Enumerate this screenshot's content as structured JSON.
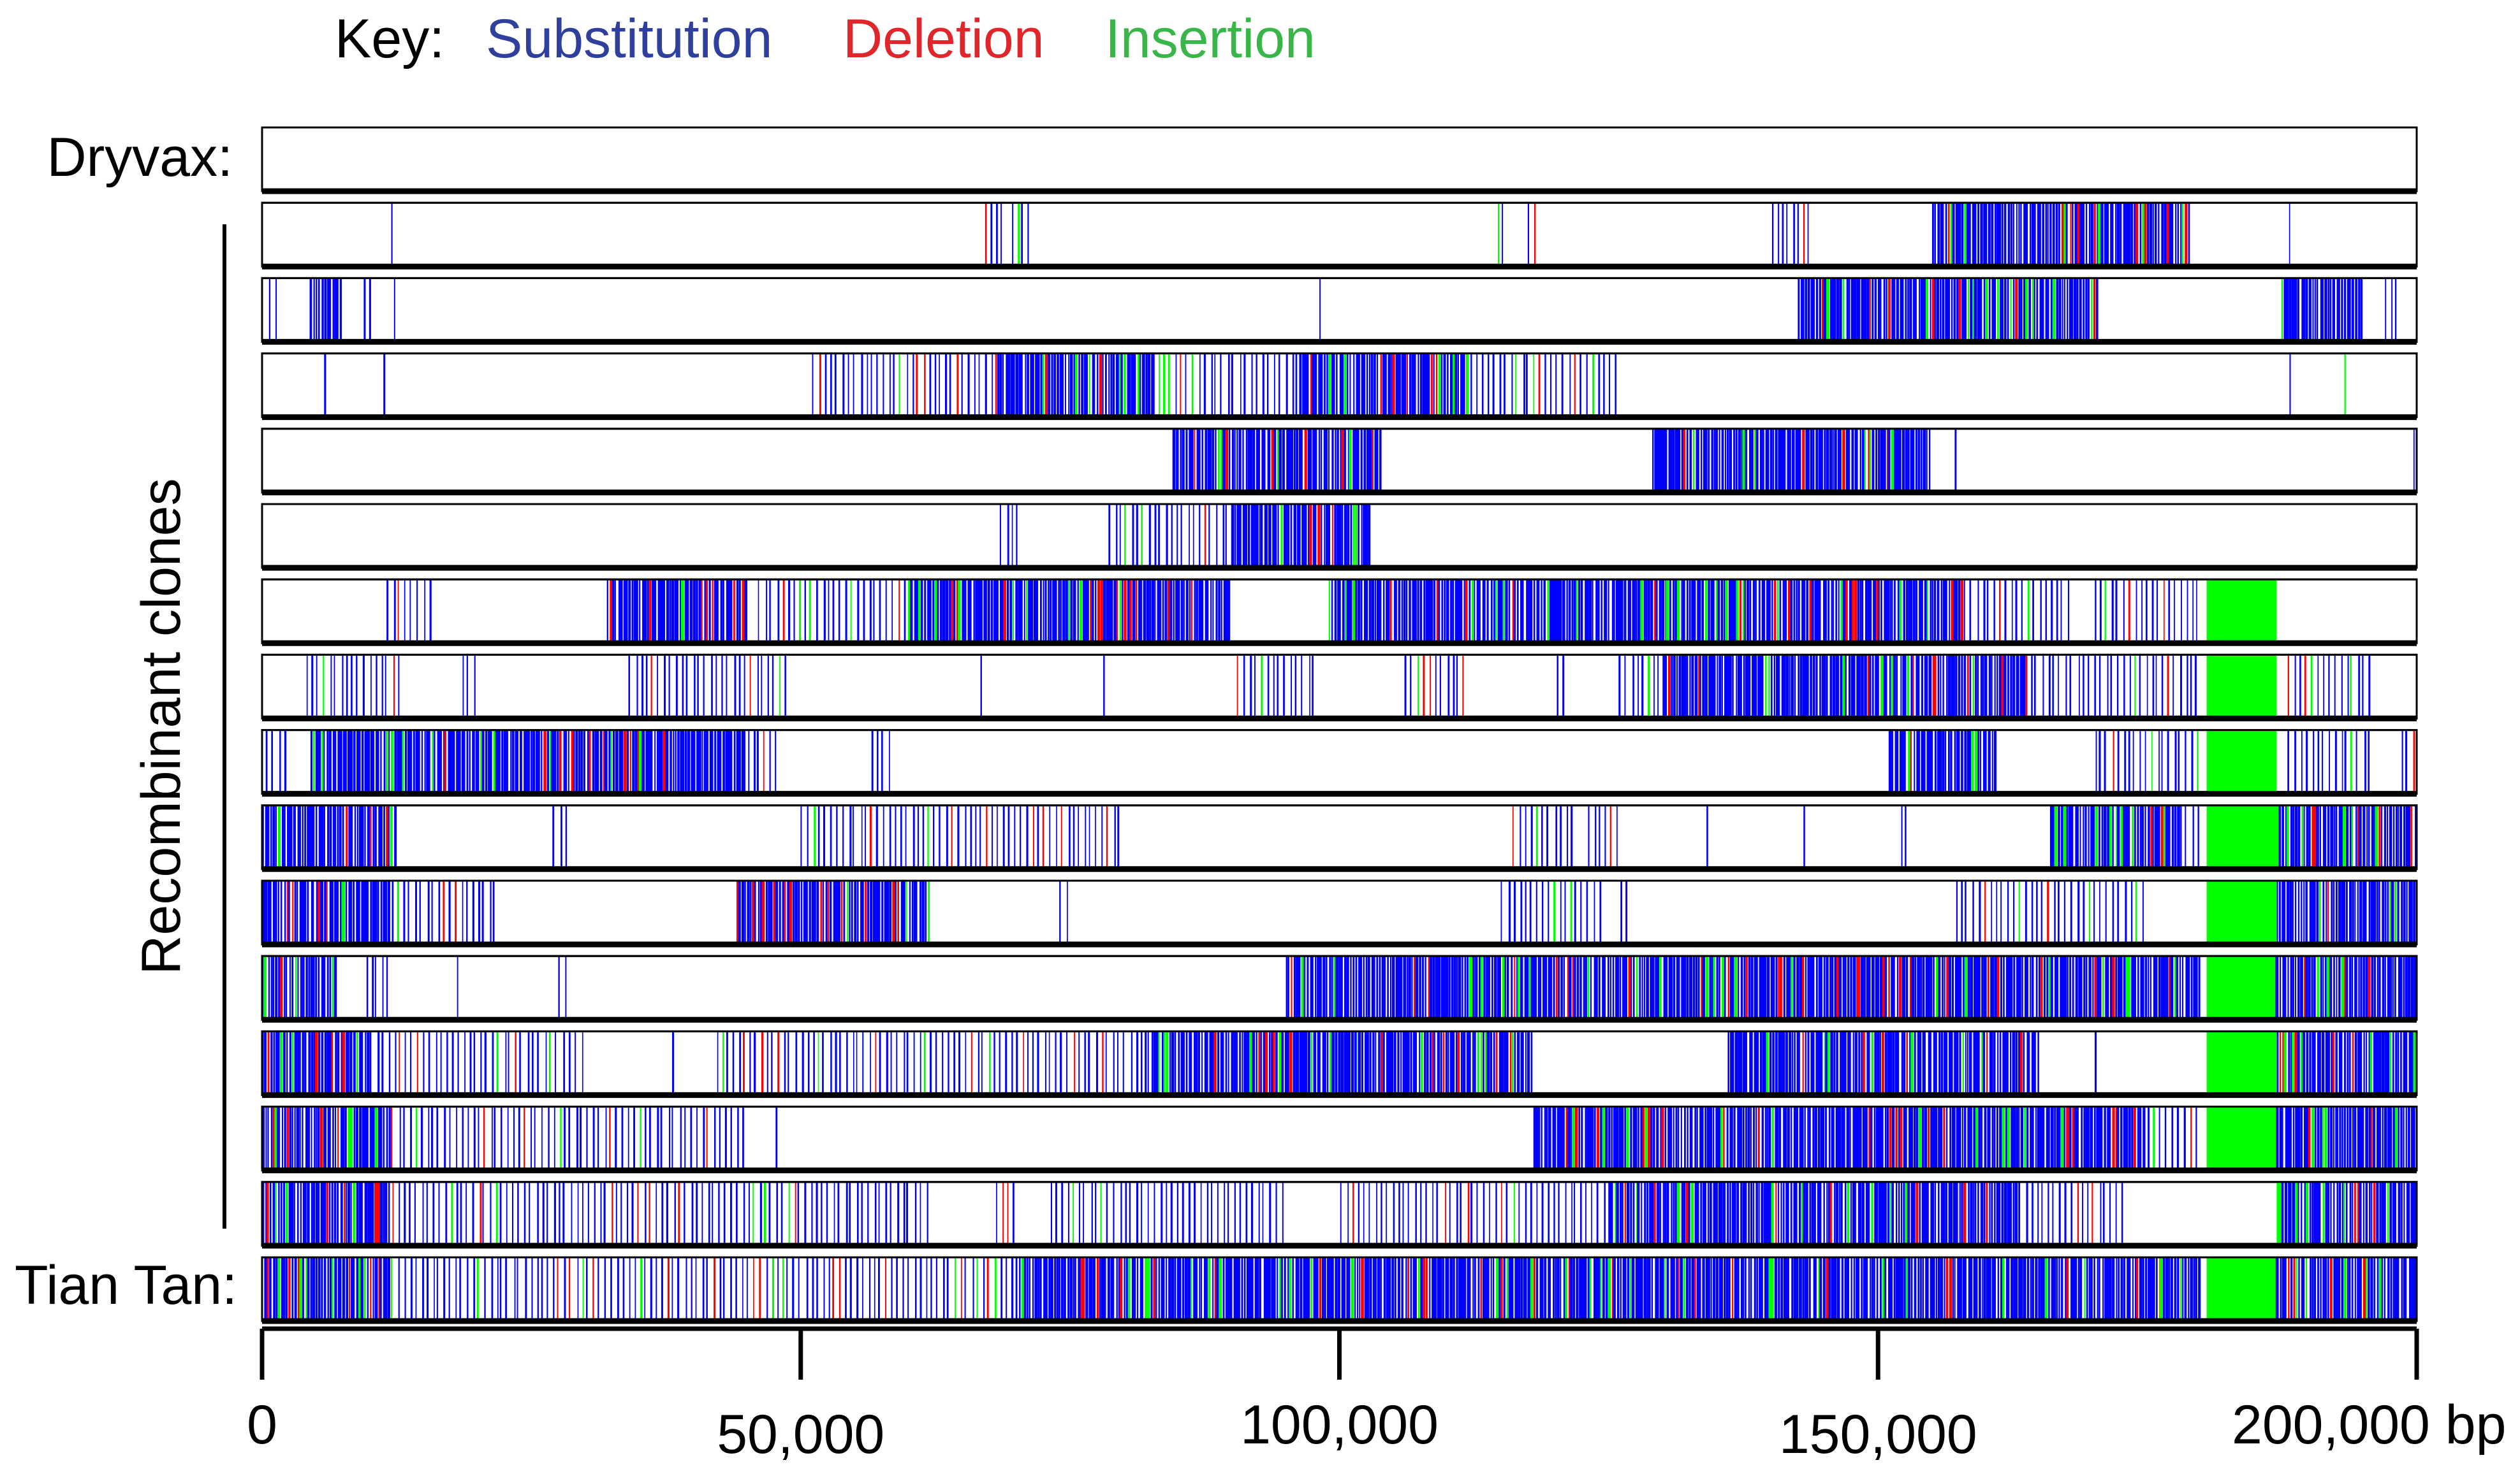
{
  "key": {
    "label": "Key:",
    "substitution": "Substitution",
    "deletion": "Deletion",
    "insertion": "Insertion"
  },
  "labels": {
    "top": "Dryvax:",
    "group": "Recombinant clones",
    "bottom": "Tian Tan:"
  },
  "colors": {
    "substitution": "#0000ff",
    "deletion": "#ff0000",
    "insertion": "#00ff00",
    "key_substitution": "#2e3f9c",
    "key_deletion": "#e0262b",
    "key_insertion": "#3ab54a",
    "frame": "#000000"
  },
  "chart_data": {
    "type": "genome-variant-tracks",
    "x_unit": "bp",
    "xlim": [
      0,
      200000
    ],
    "x_ticks": [
      0,
      50000,
      100000,
      150000,
      200000
    ],
    "x_tick_labels": [
      "0",
      "50,000",
      "100,000",
      "150,000",
      "200,000 bp"
    ],
    "tracks": [
      {
        "name": "Dryvax",
        "label": "Dryvax:",
        "regions": [],
        "dense": []
      },
      {
        "name": "clone-1",
        "label": "",
        "regions": [
          [
            12000,
            12100
          ],
          [
            67000,
            69000
          ],
          [
            69500,
            71500
          ],
          [
            114500,
            115500
          ],
          [
            117500,
            118500
          ],
          [
            140000,
            144000
          ],
          [
            155000,
            165000
          ],
          [
            165000,
            179000
          ],
          [
            188000,
            188400
          ]
        ],
        "dense": [
          [
            155000,
            179000
          ]
        ]
      },
      {
        "name": "clone-2",
        "label": "",
        "regions": [
          [
            700,
            1500
          ],
          [
            4500,
            7500
          ],
          [
            9500,
            10500
          ],
          [
            12000,
            12600
          ],
          [
            98000,
            98400
          ],
          [
            142500,
            152500
          ],
          [
            152500,
            170500
          ],
          [
            187500,
            195000
          ],
          [
            197000,
            198500
          ]
        ],
        "dense": [
          [
            4500,
            7500
          ],
          [
            142500,
            170500
          ],
          [
            190000,
            194500
          ]
        ]
      },
      {
        "name": "clone-3",
        "label": "",
        "regions": [
          [
            5500,
            6200
          ],
          [
            11000,
            11700
          ],
          [
            51000,
            56000
          ],
          [
            56000,
            68000
          ],
          [
            68000,
            83000
          ],
          [
            83000,
            96000
          ],
          [
            96000,
            112000
          ],
          [
            112000,
            126000
          ],
          [
            188000,
            188500
          ],
          [
            193000,
            193700
          ]
        ],
        "dense": [
          [
            67000,
            82000
          ],
          [
            96000,
            112000
          ]
        ]
      },
      {
        "name": "clone-4",
        "label": "",
        "regions": [
          [
            84500,
            92500
          ],
          [
            92500,
            104000
          ],
          [
            129000,
            148000
          ],
          [
            148000,
            155000
          ],
          [
            157000,
            157400
          ],
          [
            199500,
            200000
          ]
        ],
        "dense": [
          [
            84500,
            104000
          ],
          [
            129000,
            155000
          ]
        ]
      },
      {
        "name": "clone-5",
        "label": "",
        "regions": [
          [
            68500,
            70500
          ],
          [
            78500,
            90000
          ],
          [
            90000,
            103000
          ]
        ],
        "dense": [
          [
            96000,
            103000
          ]
        ]
      },
      {
        "name": "clone-6",
        "label": "",
        "regions": [
          [
            11500,
            16000
          ],
          [
            32000,
            45000
          ],
          [
            46000,
            60000
          ],
          [
            60000,
            90000
          ],
          [
            99000,
            120000
          ],
          [
            120000,
            158000
          ],
          [
            158000,
            168000
          ],
          [
            170000,
            180000
          ]
        ],
        "dense": [
          [
            34000,
            44000
          ],
          [
            68000,
            82000
          ],
          [
            103000,
            112000
          ],
          [
            130000,
            158000
          ]
        ],
        "ins_blocks": [
          [
            180500,
            187000
          ]
        ]
      },
      {
        "name": "clone-7",
        "label": "",
        "regions": [
          [
            4000,
            13000
          ],
          [
            18500,
            20000
          ],
          [
            34000,
            49000
          ],
          [
            66500,
            67000
          ],
          [
            78000,
            78300
          ],
          [
            90500,
            98000
          ],
          [
            106000,
            112000
          ],
          [
            120000,
            121000
          ],
          [
            126000,
            130000
          ],
          [
            130000,
            147000
          ],
          [
            147000,
            164000
          ],
          [
            164000,
            170000
          ],
          [
            170000,
            180000
          ],
          [
            188000,
            196000
          ]
        ],
        "dense": [
          [
            131000,
            165000
          ]
        ],
        "ins_blocks": [
          [
            180500,
            187000
          ]
        ]
      },
      {
        "name": "clone-8",
        "label": "",
        "regions": [
          [
            200,
            2500
          ],
          [
            4500,
            12000
          ],
          [
            12000,
            20000
          ],
          [
            20000,
            45000
          ],
          [
            45000,
            48000
          ],
          [
            56500,
            58500
          ],
          [
            151000,
            161000
          ],
          [
            170000,
            180000
          ],
          [
            188000,
            196000
          ],
          [
            198500,
            200000
          ]
        ],
        "dense": [
          [
            5500,
            46000
          ],
          [
            151000,
            156000
          ]
        ],
        "ins_blocks": [
          [
            180500,
            187000
          ]
        ]
      },
      {
        "name": "clone-9",
        "label": "",
        "regions": [
          [
            0,
            12500
          ],
          [
            27000,
            28500
          ],
          [
            50000,
            57000
          ],
          [
            57000,
            65000
          ],
          [
            65000,
            80000
          ],
          [
            116000,
            122000
          ],
          [
            123000,
            126000
          ],
          [
            134000,
            134300
          ],
          [
            143000,
            143300
          ],
          [
            152000,
            153000
          ],
          [
            166000,
            178000
          ],
          [
            178000,
            180000
          ],
          [
            187000,
            200000
          ]
        ],
        "dense": [
          [
            0,
            12500
          ],
          [
            63000,
            70000
          ],
          [
            166000,
            174000
          ],
          [
            187000,
            200000
          ]
        ],
        "ins_blocks": [
          [
            180500,
            187000
          ]
        ]
      },
      {
        "name": "clone-10",
        "label": "",
        "regions": [
          [
            0,
            12000
          ],
          [
            12000,
            22000
          ],
          [
            44000,
            62000
          ],
          [
            74000,
            75000
          ],
          [
            115000,
            124500
          ],
          [
            126000,
            127000
          ],
          [
            157000,
            170000
          ],
          [
            170000,
            175000
          ],
          [
            187000,
            200000
          ]
        ],
        "dense": [
          [
            0,
            12000
          ],
          [
            46000,
            62000
          ],
          [
            187000,
            200000
          ]
        ],
        "ins_blocks": [
          [
            180500,
            187000
          ]
        ]
      },
      {
        "name": "clone-11",
        "label": "",
        "regions": [
          [
            0,
            7000
          ],
          [
            9500,
            12000
          ],
          [
            18000,
            18300
          ],
          [
            27500,
            28500
          ],
          [
            95000,
            180000
          ],
          [
            187000,
            200000
          ]
        ],
        "dense": [
          [
            0,
            6000
          ],
          [
            95000,
            115000
          ],
          [
            125000,
            158000
          ],
          [
            187000,
            200000
          ]
        ],
        "ins_blocks": [
          [
            180500,
            187000
          ]
        ]
      },
      {
        "name": "clone-12",
        "label": "",
        "regions": [
          [
            0,
            10000
          ],
          [
            10000,
            25000
          ],
          [
            25000,
            30000
          ],
          [
            38000,
            38300
          ],
          [
            42000,
            62000
          ],
          [
            62000,
            82000
          ],
          [
            82000,
            118000
          ],
          [
            136000,
            165000
          ],
          [
            170000,
            170400
          ],
          [
            187000,
            200000
          ]
        ],
        "dense": [
          [
            0,
            10000
          ],
          [
            95000,
            118000
          ],
          [
            136000,
            160000
          ],
          [
            187000,
            200000
          ]
        ],
        "ins_blocks": [
          [
            180500,
            187000
          ]
        ]
      },
      {
        "name": "clone-13",
        "label": "",
        "regions": [
          [
            0,
            12000
          ],
          [
            12000,
            45000
          ],
          [
            47500,
            48000
          ],
          [
            118000,
            175000
          ],
          [
            175000,
            180000
          ],
          [
            187000,
            200000
          ]
        ],
        "dense": [
          [
            0,
            12000
          ],
          [
            125000,
            160000
          ],
          [
            187000,
            200000
          ]
        ],
        "ins_blocks": [
          [
            180500,
            187000
          ]
        ]
      },
      {
        "name": "clone-14",
        "label": "",
        "regions": [
          [
            0,
            12000
          ],
          [
            12000,
            62000
          ],
          [
            68000,
            70000
          ],
          [
            73000,
            95000
          ],
          [
            100000,
            125000
          ],
          [
            125000,
            163000
          ],
          [
            163000,
            173000
          ],
          [
            187000,
            200000
          ]
        ],
        "dense": [
          [
            0,
            12000
          ],
          [
            50000,
            62000
          ],
          [
            100000,
            112000
          ],
          [
            125000,
            160000
          ],
          [
            187000,
            200000
          ]
        ],
        "ins_blocks": [
          [
            187000,
            187300
          ]
        ]
      },
      {
        "name": "Tian Tan",
        "label": "Tian Tan:",
        "regions": [
          [
            0,
            12000
          ],
          [
            12000,
            70000
          ],
          [
            70000,
            180000
          ],
          [
            187000,
            200000
          ]
        ],
        "dense": [
          [
            0,
            12000
          ],
          [
            67000,
            82000
          ],
          [
            96000,
            112000
          ],
          [
            125000,
            160000
          ],
          [
            187000,
            200000
          ]
        ],
        "ins_blocks": [
          [
            180500,
            187000
          ]
        ]
      }
    ]
  }
}
